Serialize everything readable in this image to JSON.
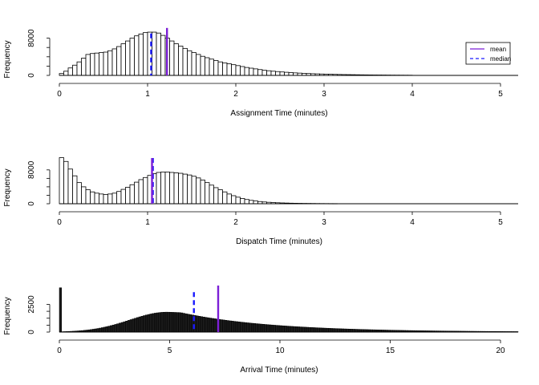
{
  "chart_data": [
    {
      "type": "histogram",
      "xlabel": "Assignment Time (minutes)",
      "ylabel": "Frequency",
      "xlim": [
        0,
        5.2
      ],
      "ylim": [
        0,
        10000
      ],
      "x_ticks": [
        "0",
        "1",
        "2",
        "3",
        "4",
        "5"
      ],
      "y_ticks": [
        "0",
        "8000"
      ],
      "bin_width": 0.05,
      "bin_start": 0,
      "counts": [
        400,
        900,
        1600,
        2200,
        2900,
        3700,
        4500,
        4700,
        4800,
        4900,
        5000,
        5300,
        5700,
        6200,
        6800,
        7400,
        8000,
        8500,
        8900,
        9200,
        9300,
        9300,
        9100,
        8600,
        8000,
        7400,
        6800,
        6300,
        5800,
        5300,
        4900,
        4500,
        4100,
        3800,
        3500,
        3200,
        2900,
        2700,
        2500,
        2300,
        2100,
        1900,
        1700,
        1550,
        1400,
        1250,
        1100,
        1000,
        900,
        820,
        740,
        670,
        600,
        540,
        490,
        440,
        400,
        360,
        330,
        300,
        270,
        245,
        220,
        200,
        180,
        165,
        150,
        135,
        120,
        110,
        100,
        90,
        82,
        75,
        68,
        60,
        55,
        50,
        45,
        40
      ],
      "mean": 1.22,
      "median": 1.04,
      "mean_top": 10200,
      "median_top": 9000,
      "legend": {
        "position": "top-right",
        "mean_label": "mean",
        "median_label": "median"
      },
      "colors": {
        "mean": "#7c1fd6",
        "median": "#1a1aff"
      }
    },
    {
      "type": "histogram",
      "xlabel": "Dispatch Time (minutes)",
      "ylabel": "Frequency",
      "xlim": [
        0,
        5.2
      ],
      "ylim": [
        0,
        11000
      ],
      "x_ticks": [
        "0",
        "1",
        "2",
        "3",
        "4",
        "5"
      ],
      "y_ticks": [
        "0",
        "8000"
      ],
      "bin_width": 0.05,
      "bin_start": 0,
      "counts": [
        10900,
        10000,
        8200,
        6600,
        5000,
        4000,
        3300,
        2800,
        2500,
        2300,
        2200,
        2300,
        2500,
        2900,
        3400,
        3900,
        4500,
        5100,
        5700,
        6200,
        6700,
        7100,
        7400,
        7500,
        7500,
        7400,
        7300,
        7200,
        7000,
        6800,
        6500,
        6100,
        5600,
        5000,
        4400,
        3800,
        3300,
        2800,
        2300,
        1900,
        1550,
        1250,
        1000,
        800,
        650,
        520,
        420,
        340,
        280,
        230,
        190,
        160,
        130,
        110,
        95,
        80,
        70,
        60,
        50,
        44,
        38,
        32,
        28
      ],
      "mean": 1.05,
      "median": 1.06,
      "mean_top": 10800,
      "median_top": 10800,
      "colors": {
        "mean": "#7c1fd6",
        "median": "#1a1aff"
      }
    },
    {
      "type": "histogram",
      "xlabel": "Arrival Time (minutes)",
      "ylabel": "Frequency",
      "xlim": [
        0,
        20.8
      ],
      "ylim": [
        0,
        4200
      ],
      "x_ticks": [
        "0",
        "5",
        "10",
        "15",
        "20"
      ],
      "y_ticks": [
        "0",
        "2500"
      ],
      "bin_width": 0.1,
      "spike": {
        "x": 0.05,
        "value": 4000
      },
      "curve": {
        "peak_x": 4.9,
        "peak_value": 1800,
        "sd_left": 1.7,
        "tail_start": 5.5,
        "tail_scale": 4.1,
        "end_x": 20.8
      },
      "mean": 7.2,
      "median": 6.1,
      "mean_top": 4200,
      "median_top": 3600,
      "colors": {
        "mean": "#7c1fd6",
        "median": "#1a1aff",
        "bars": "#1a1a1a"
      }
    }
  ]
}
